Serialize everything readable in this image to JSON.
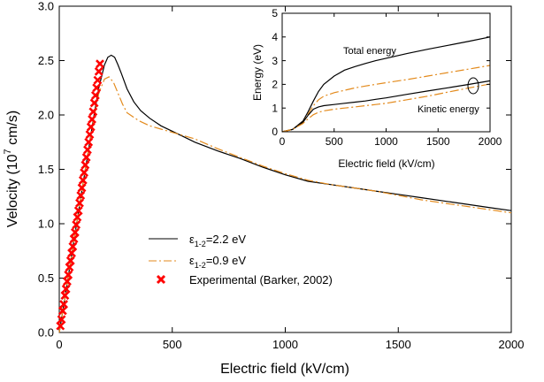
{
  "chart_data": [
    {
      "type": "line",
      "panel": "main",
      "xlabel": "Electric field (kV/cm)",
      "ylabel_main": "Velocity (10",
      "ylabel_sup": "7",
      "ylabel_tail": " cm/s)",
      "xlim": [
        0,
        2000
      ],
      "ylim": [
        0,
        3.0
      ],
      "xticks": [
        "0",
        "500",
        "1000",
        "1500",
        "2000"
      ],
      "yticks": [
        "0.0",
        "0.5",
        "1.0",
        "1.5",
        "2.0",
        "2.5",
        "3.0"
      ],
      "legend_placement": "lower-center",
      "series": [
        {
          "legend": {
            "symbol": "ε",
            "sub": "1-2",
            "value": "=2.2 eV"
          },
          "color": "#000000",
          "style": "solid",
          "x": [
            0,
            25,
            50,
            75,
            100,
            125,
            150,
            175,
            200,
            215,
            230,
            245,
            260,
            275,
            300,
            330,
            360,
            400,
            450,
            500,
            550,
            600,
            700,
            800,
            900,
            1000,
            1100,
            1200,
            1300,
            1400,
            1500,
            1600,
            1700,
            1800,
            1900,
            2000
          ],
          "y": [
            0,
            0.32,
            0.65,
            0.98,
            1.3,
            1.62,
            1.95,
            2.25,
            2.46,
            2.53,
            2.55,
            2.53,
            2.46,
            2.38,
            2.24,
            2.12,
            2.04,
            1.97,
            1.9,
            1.85,
            1.8,
            1.75,
            1.67,
            1.6,
            1.52,
            1.45,
            1.39,
            1.36,
            1.33,
            1.3,
            1.27,
            1.24,
            1.21,
            1.18,
            1.15,
            1.12
          ]
        },
        {
          "legend": {
            "symbol": "ε",
            "sub": "1-2",
            "value": "=0.9 eV"
          },
          "color": "#e38a1c",
          "style": "dashdot",
          "x": [
            0,
            25,
            50,
            75,
            100,
            125,
            150,
            175,
            200,
            220,
            240,
            260,
            280,
            300,
            350,
            400,
            450,
            500,
            600,
            700,
            800,
            900,
            1000,
            1100,
            1200,
            1300,
            1400,
            1500,
            1600,
            1700,
            1800,
            1900,
            2000
          ],
          "y": [
            0,
            0.32,
            0.65,
            0.98,
            1.3,
            1.62,
            1.93,
            2.2,
            2.33,
            2.35,
            2.3,
            2.2,
            2.1,
            2.02,
            1.95,
            1.9,
            1.87,
            1.84,
            1.78,
            1.69,
            1.61,
            1.53,
            1.46,
            1.4,
            1.36,
            1.33,
            1.3,
            1.26,
            1.22,
            1.19,
            1.16,
            1.13,
            1.1
          ]
        },
        {
          "legend": {
            "symbol": "",
            "sub": "",
            "value": "Experimental (Barker, 2002)"
          },
          "color": "#ff0000",
          "style": "marker-x",
          "x": [
            5,
            10,
            15,
            20,
            25,
            30,
            35,
            40,
            45,
            50,
            55,
            60,
            65,
            70,
            75,
            80,
            85,
            90,
            95,
            100,
            105,
            110,
            115,
            120,
            125,
            130,
            135,
            140,
            145,
            150,
            155,
            160,
            165,
            170,
            175,
            180
          ],
          "y": [
            0.06,
            0.12,
            0.2,
            0.26,
            0.34,
            0.4,
            0.47,
            0.53,
            0.6,
            0.66,
            0.73,
            0.79,
            0.86,
            0.92,
            0.99,
            1.06,
            1.12,
            1.19,
            1.26,
            1.33,
            1.4,
            1.47,
            1.54,
            1.61,
            1.68,
            1.75,
            1.82,
            1.89,
            1.96,
            2.03,
            2.11,
            2.18,
            2.25,
            2.32,
            2.4,
            2.47
          ]
        }
      ]
    },
    {
      "type": "line",
      "panel": "inset",
      "xlabel": "Electric field (kV/cm)",
      "ylabel": "Energy (eV)",
      "xlim": [
        0,
        2000
      ],
      "ylim": [
        0,
        5
      ],
      "xticks": [
        "0",
        "500",
        "1000",
        "1500",
        "2000"
      ],
      "yticks": [
        "0",
        "1",
        "2",
        "3",
        "4",
        "5"
      ],
      "annotations": [
        "Total energy",
        "Kinetic energy"
      ],
      "series": [
        {
          "group": "Total energy",
          "color": "#000000",
          "style": "solid",
          "x": [
            0,
            100,
            200,
            250,
            300,
            350,
            400,
            500,
            600,
            700,
            800,
            900,
            1000,
            1200,
            1400,
            1600,
            1800,
            2000
          ],
          "y": [
            0,
            0.1,
            0.45,
            0.85,
            1.3,
            1.7,
            2.0,
            2.35,
            2.6,
            2.75,
            2.88,
            3.0,
            3.1,
            3.3,
            3.48,
            3.65,
            3.82,
            4.0
          ]
        },
        {
          "group": "Total energy",
          "color": "#e38a1c",
          "style": "dashdot",
          "x": [
            0,
            100,
            200,
            250,
            300,
            350,
            400,
            500,
            600,
            700,
            800,
            900,
            1000,
            1200,
            1400,
            1600,
            1800,
            2000
          ],
          "y": [
            0,
            0.1,
            0.4,
            0.75,
            1.1,
            1.35,
            1.5,
            1.65,
            1.75,
            1.85,
            1.93,
            2.0,
            2.07,
            2.2,
            2.35,
            2.5,
            2.65,
            2.8
          ]
        },
        {
          "group": "Kinetic energy",
          "color": "#000000",
          "style": "solid",
          "x": [
            0,
            100,
            200,
            250,
            300,
            350,
            400,
            500,
            600,
            700,
            800,
            900,
            1000,
            1200,
            1400,
            1600,
            1800,
            2000
          ],
          "y": [
            0,
            0.1,
            0.4,
            0.7,
            0.95,
            1.05,
            1.1,
            1.15,
            1.2,
            1.25,
            1.3,
            1.37,
            1.43,
            1.58,
            1.72,
            1.86,
            2.0,
            2.15
          ]
        },
        {
          "group": "Kinetic energy",
          "color": "#e38a1c",
          "style": "dashdot",
          "x": [
            0,
            100,
            200,
            250,
            300,
            350,
            400,
            500,
            600,
            700,
            800,
            900,
            1000,
            1200,
            1400,
            1600,
            1800,
            2000
          ],
          "y": [
            0,
            0.1,
            0.35,
            0.55,
            0.72,
            0.82,
            0.88,
            0.95,
            1.0,
            1.05,
            1.1,
            1.15,
            1.2,
            1.35,
            1.5,
            1.68,
            1.85,
            2.02
          ]
        }
      ]
    }
  ]
}
